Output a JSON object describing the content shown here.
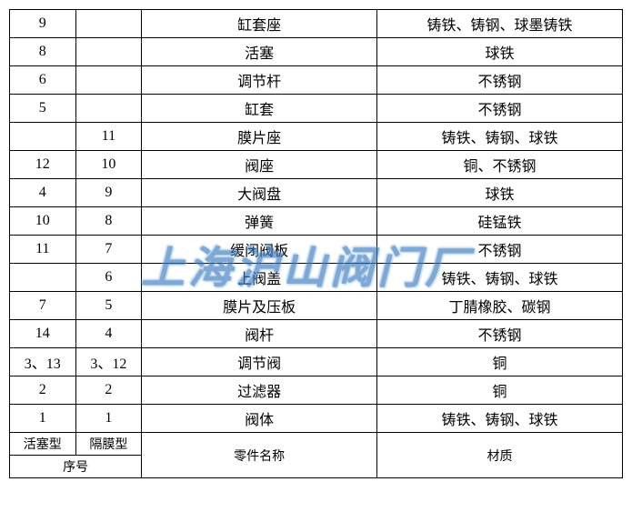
{
  "table": {
    "rows": [
      {
        "c1": "9",
        "c2": "",
        "c3": "缸套座",
        "c4": "铸铁、铸钢、球墨铸铁"
      },
      {
        "c1": "8",
        "c2": "",
        "c3": "活塞",
        "c4": "球铁"
      },
      {
        "c1": "6",
        "c2": "",
        "c3": "调节杆",
        "c4": "不锈钢"
      },
      {
        "c1": "5",
        "c2": "",
        "c3": "缸套",
        "c4": "不锈钢"
      },
      {
        "c1": "",
        "c2": "11",
        "c3": "膜片座",
        "c4": "铸铁、铸钢、球铁"
      },
      {
        "c1": "12",
        "c2": "10",
        "c3": "阀座",
        "c4": "铜、不锈钢"
      },
      {
        "c1": "4",
        "c2": "9",
        "c3": "大阀盘",
        "c4": "球铁"
      },
      {
        "c1": "10",
        "c2": "8",
        "c3": "弹簧",
        "c4": "硅锰铁"
      },
      {
        "c1": "11",
        "c2": "7",
        "c3": "缓闭阀板",
        "c4": "不锈钢"
      },
      {
        "c1": "",
        "c2": "6",
        "c3": "上阀盖",
        "c4": "铸铁、铸钢、球铁"
      },
      {
        "c1": "7",
        "c2": "5",
        "c3": "膜片及压板",
        "c4": "丁腈橡胶、碳钢"
      },
      {
        "c1": "14",
        "c2": "4",
        "c3": "阀杆",
        "c4": "不锈钢"
      },
      {
        "c1": "3、13",
        "c2": "3、12",
        "c3": "调节阀",
        "c4": "铜"
      },
      {
        "c1": "2",
        "c2": "2",
        "c3": "过滤器",
        "c4": "铜"
      },
      {
        "c1": "1",
        "c2": "1",
        "c3": "阀体",
        "c4": "铸铁、铸钢、球铁"
      }
    ],
    "footer": {
      "type1": "活塞型",
      "type2": "隔膜型",
      "seq_label": "序号",
      "name_label": "零件名称",
      "material_label": "材质"
    }
  },
  "watermark": "上海沪山阀门厂"
}
